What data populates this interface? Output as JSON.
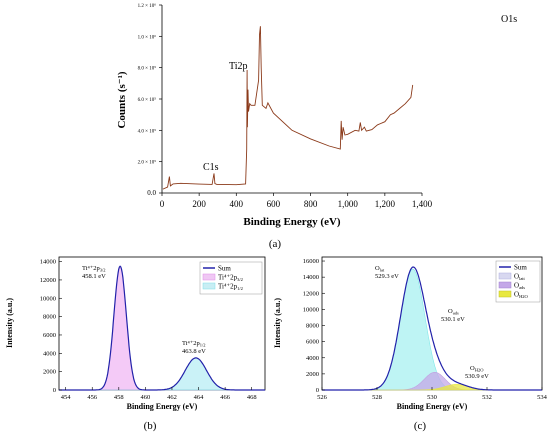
{
  "chart_data": [
    {
      "panel": "(a)",
      "type": "line",
      "xlabel": "Binding Energy (eV)",
      "ylabel": "Counts (s⁻¹)",
      "xlim": [
        0,
        1400
      ],
      "ylim": [
        0,
        1200000
      ],
      "xticks": [
        0,
        200,
        400,
        600,
        800,
        1000,
        1200,
        1400
      ],
      "xtick_labels": [
        "0",
        "200",
        "400",
        "600",
        "800",
        "1,000",
        "1,200",
        "1,400"
      ],
      "yticks": [
        0,
        200000,
        400000,
        600000,
        800000,
        1000000,
        1200000
      ],
      "ytick_labels": [
        "0.0",
        "2.0 × 10⁵",
        "4.0 × 10⁵",
        "6.0 × 10⁵",
        "8.0 × 10⁵",
        "1.0 × 10⁶",
        "1.2 × 10⁶"
      ],
      "annotations": [
        {
          "text": "O1s",
          "x": 530,
          "y": 1110000
        },
        {
          "text": "Ti2p",
          "x": 459,
          "y": 760000
        },
        {
          "text": "C1s",
          "x": 285,
          "y": 150000
        }
      ],
      "series": [
        {
          "color": "#8b3a1a",
          "x": [
            5,
            30,
            40,
            45,
            60,
            100,
            200,
            270,
            280,
            285,
            295,
            320,
            400,
            450,
            456,
            458,
            460,
            463,
            466,
            472,
            480,
            500,
            520,
            525,
            530,
            534,
            540,
            560,
            570,
            600,
            700,
            800,
            900,
            960,
            965,
            970,
            975,
            985,
            1000,
            1040,
            1060,
            1068,
            1075,
            1090,
            1100,
            1130,
            1160,
            1200,
            1230,
            1250,
            1280,
            1310,
            1340,
            1350
          ],
          "y": [
            25000,
            38000,
            105000,
            45000,
            58000,
            62000,
            57000,
            55000,
            125000,
            60000,
            55000,
            55000,
            53000,
            58000,
            280000,
            785000,
            420000,
            660000,
            520000,
            570000,
            560000,
            560000,
            720000,
            1010000,
            1065000,
            800000,
            560000,
            540000,
            575000,
            510000,
            400000,
            345000,
            300000,
            280000,
            460000,
            340000,
            420000,
            370000,
            375000,
            400000,
            395000,
            450000,
            400000,
            420000,
            395000,
            405000,
            435000,
            455000,
            500000,
            510000,
            540000,
            570000,
            610000,
            690000
          ]
        }
      ]
    },
    {
      "panel": "(b)",
      "type": "line",
      "xlabel": "Binding Energy (eV)",
      "ylabel": "Intensity (a.u.)",
      "xlim": [
        453.5,
        469
      ],
      "ylim": [
        0,
        14500
      ],
      "xticks": [
        454,
        456,
        458,
        460,
        462,
        464,
        466,
        468
      ],
      "yticks": [
        0,
        2000,
        4000,
        6000,
        8000,
        10000,
        12000,
        14000
      ],
      "legend": {
        "position": "top-right",
        "entries": [
          "Sum",
          "Ti⁴⁺2p3/2",
          "Ti⁴⁺2p1/2"
        ]
      },
      "annotations": [
        {
          "text": "Ti⁴⁺2p3/2",
          "value": "458.1 eV"
        },
        {
          "text": "Ti⁴⁺2p1/2",
          "value": "463.8 eV"
        }
      ],
      "series": [
        {
          "name": "Sum",
          "color": "#2222aa",
          "peaks": [
            {
              "center": 458.1,
              "height": 13500,
              "fwhm": 1.1
            },
            {
              "center": 463.8,
              "height": 3500,
              "fwhm": 1.9
            }
          ]
        },
        {
          "name": "Ti⁴⁺2p3/2",
          "color": "#e08ce8",
          "peaks": [
            {
              "center": 458.1,
              "height": 13500,
              "fwhm": 1.1
            }
          ]
        },
        {
          "name": "Ti⁴⁺2p1/2",
          "color": "#80e0e8",
          "peaks": [
            {
              "center": 463.8,
              "height": 3500,
              "fwhm": 1.9
            }
          ]
        }
      ]
    },
    {
      "panel": "(c)",
      "type": "line",
      "xlabel": "Binding Energy (eV)",
      "ylabel": "Intensity (a.u.)",
      "xlim": [
        526,
        534
      ],
      "ylim": [
        0,
        16500
      ],
      "xticks": [
        526,
        528,
        530,
        532,
        534
      ],
      "yticks": [
        0,
        2000,
        4000,
        6000,
        8000,
        10000,
        12000,
        14000,
        16000
      ],
      "legend": {
        "position": "top-right",
        "entries": [
          "Sum",
          "Olatt",
          "Oads",
          "OH2O"
        ]
      },
      "annotations": [
        {
          "text": "Olat",
          "value": "529.3 eV"
        },
        {
          "text": "Oads",
          "value": "530.1 eV"
        },
        {
          "text": "OH2O",
          "value": "530.9 eV"
        }
      ],
      "series": [
        {
          "name": "Sum",
          "color": "#2222aa",
          "peaks": [
            {
              "center": 529.3,
              "height": 15000,
              "fwhm": 1.05
            },
            {
              "center": 530.1,
              "height": 2200,
              "fwhm": 0.9
            },
            {
              "center": 530.9,
              "height": 700,
              "fwhm": 1.0
            }
          ]
        },
        {
          "name": "Olatt",
          "color": "#80e8e8",
          "peaks": [
            {
              "center": 529.3,
              "height": 15000,
              "fwhm": 1.05
            }
          ]
        },
        {
          "name": "Oads",
          "color": "#c0a0e0",
          "peaks": [
            {
              "center": 530.1,
              "height": 2200,
              "fwhm": 0.9
            }
          ]
        },
        {
          "name": "OH2O",
          "color": "#e8e840",
          "peaks": [
            {
              "center": 530.9,
              "height": 700,
              "fwhm": 1.0
            }
          ]
        }
      ]
    }
  ],
  "labels": {
    "a_xlabel": "Binding Energy (eV)",
    "a_ylabel": "Counts (s⁻¹)",
    "a_o1s": "O1s",
    "a_ti2p": "Ti2p",
    "a_c1s": "C1s",
    "a_panel": "(a)",
    "b_xlabel": "Binding Energy (eV)",
    "b_ylabel": "Intensity (a.u.)",
    "b_peak1_name": "Ti⁴⁺2p",
    "b_peak1_sub": "3/2",
    "b_peak1_val": "458.1 eV",
    "b_peak2_name": "Ti⁴⁺2p",
    "b_peak2_sub": "1/2",
    "b_peak2_val": "463.8 eV",
    "b_leg_sum": "Sum",
    "b_leg_1": "Ti⁴⁺2p",
    "b_leg_1_sub": "3/2",
    "b_leg_2": "Ti⁴⁺2p",
    "b_leg_2_sub": "1/2",
    "b_panel": "(b)",
    "c_xlabel": "Binding Energy (eV)",
    "c_ylabel": "Intensity (a.u.)",
    "c_olat": "O",
    "c_olat_sub": "lat",
    "c_olat_val": "529.3 eV",
    "c_oads": "O",
    "c_oads_sub": "ads",
    "c_oads_val": "530.1 eV",
    "c_oh2o": "O",
    "c_oh2o_sub": "H2O",
    "c_oh2o_val": "530.9 eV",
    "c_leg_sum": "Sum",
    "c_leg_1": "O",
    "c_leg_1_sub": "latt",
    "c_leg_2": "O",
    "c_leg_2_sub": "ads",
    "c_leg_3": "O",
    "c_leg_3_sub": "H2O",
    "c_panel": "(c)"
  }
}
